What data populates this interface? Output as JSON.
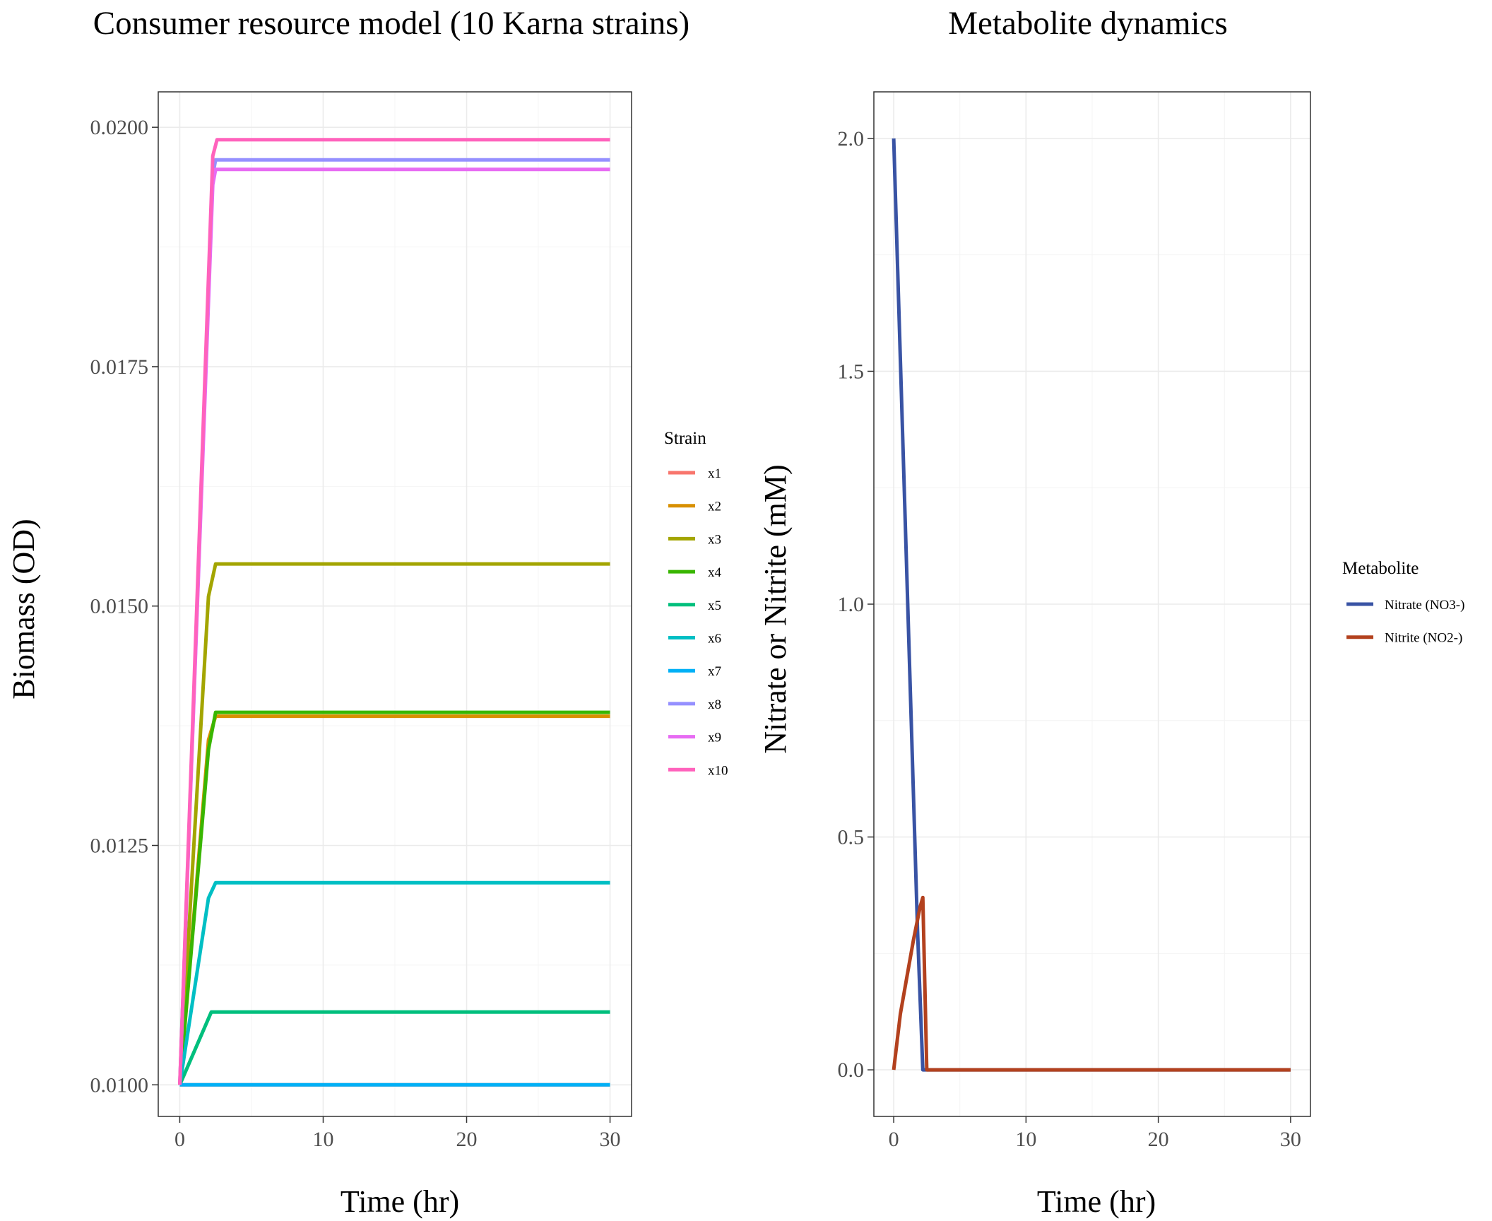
{
  "chart_data": [
    {
      "type": "line",
      "title": "Consumer resource model (10 Karna strains)",
      "xlabel": "Time (hr)",
      "ylabel": "Biomass (OD)",
      "xlim": [
        -1.5,
        31.5
      ],
      "ylim": [
        0.00967,
        0.02037
      ],
      "xticks": [
        0,
        10,
        20,
        30
      ],
      "xtick_labels": [
        "0",
        "10",
        "20",
        "30"
      ],
      "yticks": [
        0.01,
        0.0125,
        0.015,
        0.0175,
        0.02
      ],
      "ytick_labels": [
        "0.0100",
        "0.0125",
        "0.0150",
        "0.0175",
        "0.0200"
      ],
      "grid": true,
      "legend_title": "Strain",
      "legend_position": "right",
      "series": [
        {
          "name": "x1",
          "color": "#F8766D",
          "x": [
            0,
            2.5,
            30
          ],
          "y": [
            0.01,
            0.01,
            0.01
          ]
        },
        {
          "name": "x2",
          "color": "#D89000",
          "x": [
            0,
            2,
            2.5,
            30
          ],
          "y": [
            0.01,
            0.0136,
            0.01385,
            0.01385
          ]
        },
        {
          "name": "x3",
          "color": "#A3A500",
          "x": [
            0,
            2,
            2.5,
            30
          ],
          "y": [
            0.01,
            0.0151,
            0.01544,
            0.01544
          ]
        },
        {
          "name": "x4",
          "color": "#39B600",
          "x": [
            0,
            2,
            2.5,
            30
          ],
          "y": [
            0.01,
            0.0135,
            0.01389,
            0.01389
          ]
        },
        {
          "name": "x5",
          "color": "#00BF7D",
          "x": [
            0,
            2.2,
            30
          ],
          "y": [
            0.01,
            0.01076,
            0.01076
          ]
        },
        {
          "name": "x6",
          "color": "#00BFC4",
          "x": [
            0,
            2,
            2.5,
            30
          ],
          "y": [
            0.01,
            0.01195,
            0.01211,
            0.01211
          ]
        },
        {
          "name": "x7",
          "color": "#00B0F6",
          "x": [
            0,
            2.5,
            30
          ],
          "y": [
            0.01,
            0.01,
            0.01
          ]
        },
        {
          "name": "x8",
          "color": "#9590FF",
          "x": [
            0,
            2.3,
            2.5,
            30
          ],
          "y": [
            0.01,
            0.0195,
            0.01966,
            0.01966
          ]
        },
        {
          "name": "x9",
          "color": "#E76BF3",
          "x": [
            0,
            2.3,
            2.5,
            30
          ],
          "y": [
            0.01,
            0.0194,
            0.01956,
            0.01956
          ]
        },
        {
          "name": "x10",
          "color": "#FF62BC",
          "x": [
            0,
            2.3,
            2.6,
            30
          ],
          "y": [
            0.01,
            0.0197,
            0.01987,
            0.01987
          ]
        }
      ]
    },
    {
      "type": "line",
      "title": "Metabolite dynamics",
      "xlabel": "Time (hr)",
      "ylabel": "Nitrate or Nitrite (mM)",
      "xlim": [
        -1.5,
        31.5
      ],
      "ylim": [
        -0.1,
        2.1
      ],
      "xticks": [
        0,
        10,
        20,
        30
      ],
      "xtick_labels": [
        "0",
        "10",
        "20",
        "30"
      ],
      "yticks": [
        0,
        0.5,
        1,
        1.5,
        2
      ],
      "ytick_labels": [
        "0.0",
        "0.5",
        "1.0",
        "1.5",
        "2.0"
      ],
      "grid": true,
      "legend_title": "Metabolite",
      "legend_position": "right",
      "series": [
        {
          "name": "Nitrate (NO3-)",
          "color": "#3953A4",
          "x": [
            0,
            1.8,
            2.2,
            30
          ],
          "y": [
            2.0,
            0.3,
            0.0,
            0.0
          ]
        },
        {
          "name": "Nitrite (NO2-)",
          "color": "#B3411E",
          "x": [
            0,
            0.5,
            1.0,
            1.5,
            2.0,
            2.2,
            2.5,
            30
          ],
          "y": [
            0.0,
            0.12,
            0.2,
            0.28,
            0.35,
            0.37,
            0.0,
            0.0
          ]
        }
      ]
    }
  ]
}
